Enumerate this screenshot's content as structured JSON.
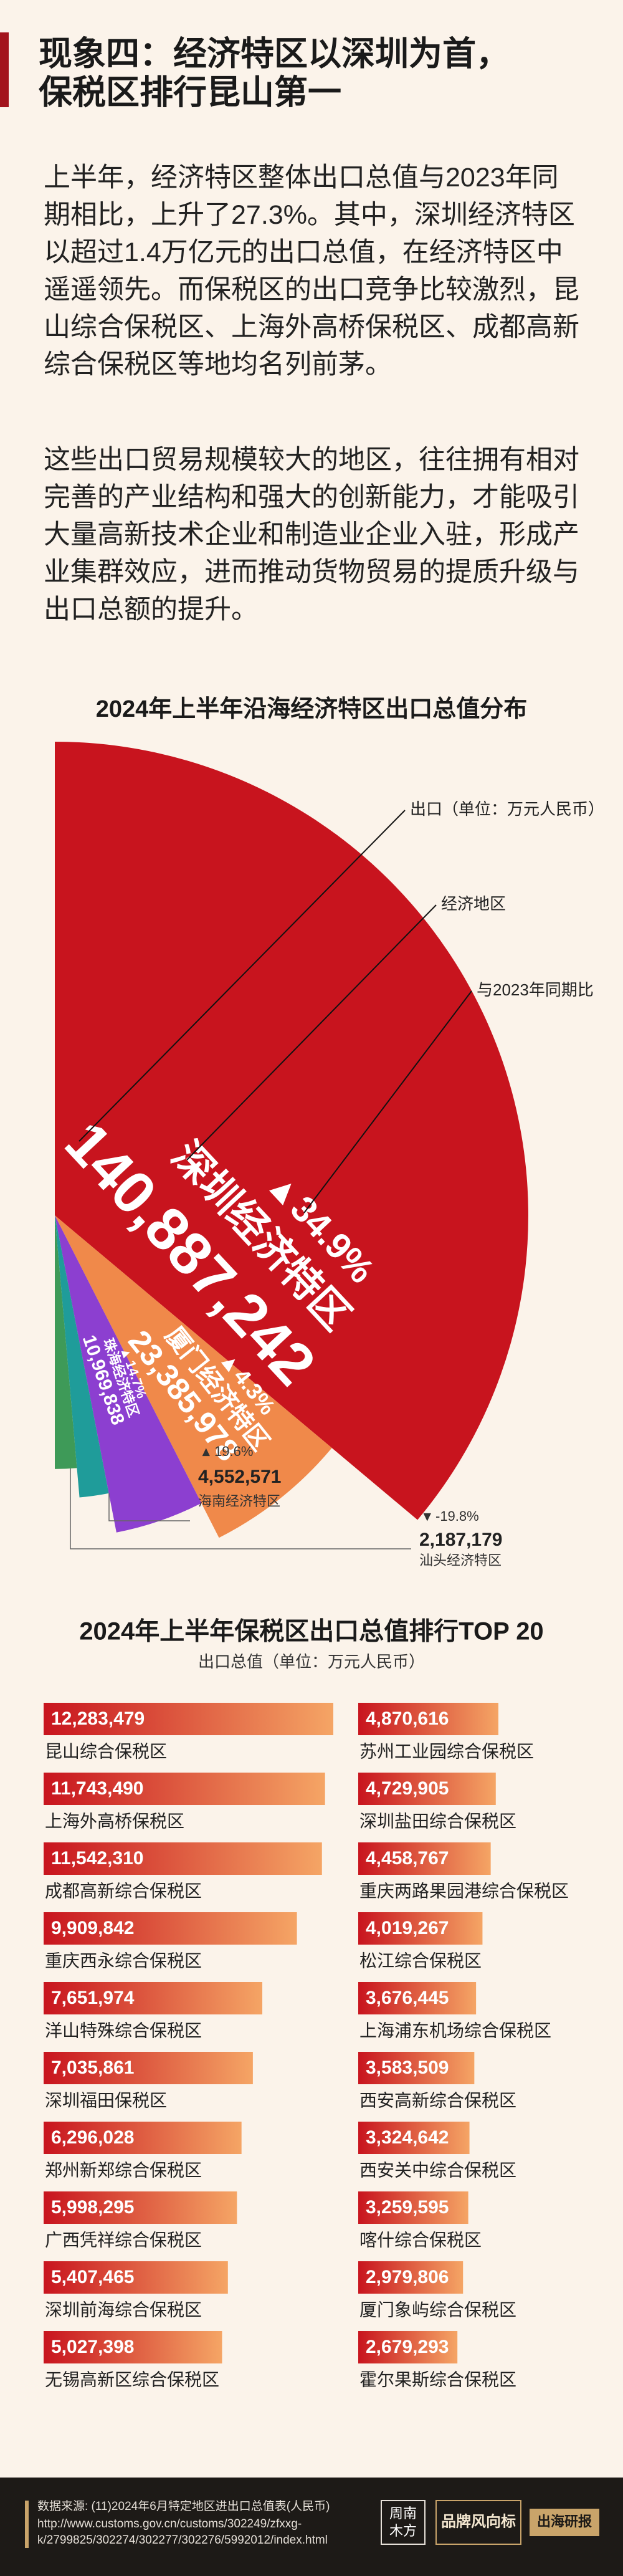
{
  "header": {
    "title_lines": [
      "现象四：经济特区以深圳为首，",
      "保税区排行昆山第一"
    ]
  },
  "paragraphs": [
    "上半年，经济特区整体出口总值与2023年同期相比，上升了27.3%。其中，深圳经济特区以超过1.4万亿元的出口总值，在经济特区中遥遥领先。而保税区的出口竞争比较激烈，昆山综合保税区、上海外高桥保税区、成都高新综合保税区等地均名列前茅。",
    "这些出口贸易规模较大的地区，往往拥有相对完善的产业结构和强大的创新能力，才能吸引大量高新技术企业和制造业企业入驻，形成产业集群效应，进而推动货物贸易的提质升级与出口总额的提升。"
  ],
  "chart_data": [
    {
      "type": "rose",
      "title": "2024年上半年沿海经济特区出口总值分布",
      "annotations": [
        "出口（单位：万元人民币）",
        "经济地区",
        "与2023年同期比"
      ],
      "categories": [
        "深圳经济特区",
        "厦门经济特区",
        "珠海经济特区",
        "海南经济特区",
        "汕头经济特区"
      ],
      "values": [
        140887242,
        23385978,
        10969838,
        4552571,
        2187179
      ],
      "value_labels": [
        "140,887,242",
        "23,385,978",
        "10,969,838",
        "4,552,571",
        "2,187,179"
      ],
      "changes": [
        34.9,
        4.3,
        14.7,
        19.6,
        -19.8
      ],
      "change_labels": [
        "34.9%",
        "4.3%",
        "14.7%",
        "19.6%",
        "-19.8%"
      ],
      "colors": [
        "#c8141e",
        "#f0894a",
        "#8c3fd0",
        "#1f9c9a",
        "#3e9a58"
      ]
    },
    {
      "type": "bar",
      "title": "2024年上半年保税区出口总值排行TOP 20",
      "subtitle": "出口总值（单位：万元人民币）",
      "categories": [
        "昆山综合保税区",
        "上海外高桥保税区",
        "成都高新综合保税区",
        "重庆西永综合保税区",
        "洋山特殊综合保税区",
        "深圳福田保税区",
        "郑州新郑综合保税区",
        "广西凭祥综合保税区",
        "深圳前海综合保税区",
        "无锡高新区综合保税区",
        "苏州工业园综合保税区",
        "深圳盐田综合保税区",
        "重庆两路果园港综合保税区",
        "松江综合保税区",
        "上海浦东机场综合保税区",
        "西安高新综合保税区",
        "西安关中综合保税区",
        "喀什综合保税区",
        "厦门象屿综合保税区",
        "霍尔果斯综合保税区"
      ],
      "values": [
        12283479,
        11743490,
        11542310,
        9909842,
        7651974,
        7035861,
        6296028,
        5998295,
        5407465,
        5027398,
        4870616,
        4729905,
        4458767,
        4019267,
        3676445,
        3583509,
        3324642,
        3259595,
        2979806,
        2679293
      ],
      "value_labels": [
        "12,283,479",
        "11,743,490",
        "11,542,310",
        "9,909,842",
        "7,651,974",
        "7,035,861",
        "6,296,028",
        "5,998,295",
        "5,407,465",
        "5,027,398",
        "4,870,616",
        "4,729,905",
        "4,458,767",
        "4,019,267",
        "3,676,445",
        "3,583,509",
        "3,324,642",
        "3,259,595",
        "2,979,806",
        "2,679,293"
      ],
      "gradient": [
        "#c8141e",
        "#f5a565"
      ]
    }
  ],
  "footer": {
    "source_lines": [
      "数据来源: (11)2024年6月特定地区进出口总值表(人民币)",
      "http://www.customs.gov.cn/customs/302249/zfxxg-",
      "k/2799825/302274/302277/302276/5992012/index.html"
    ],
    "logos": [
      "周南",
      "木方",
      "品牌风向标",
      "出海研报"
    ]
  }
}
